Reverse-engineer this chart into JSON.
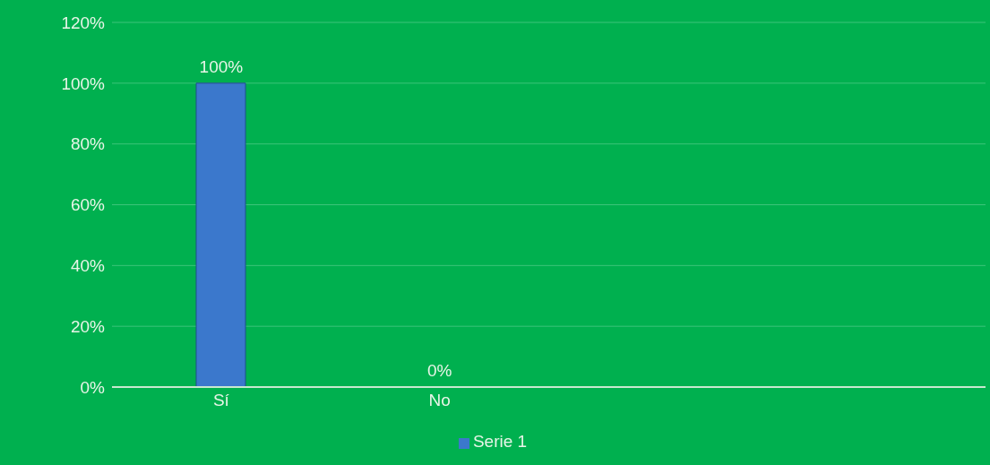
{
  "chart_data": {
    "type": "bar",
    "categories": [
      "Sí",
      "No",
      null,
      null
    ],
    "series": [
      {
        "name": "Serie 1",
        "color": "#3b78cc",
        "values": [
          100,
          0,
          null,
          null
        ],
        "value_labels": [
          "100%",
          "0%",
          null,
          null
        ]
      }
    ],
    "ylim": [
      0,
      120
    ],
    "yticks": [
      {
        "value": 0,
        "label": "0%"
      },
      {
        "value": 20,
        "label": "20%"
      },
      {
        "value": 40,
        "label": "40%"
      },
      {
        "value": 60,
        "label": "60%"
      },
      {
        "value": 80,
        "label": "80%"
      },
      {
        "value": 100,
        "label": "100%"
      },
      {
        "value": 120,
        "label": "120%"
      }
    ],
    "grid": "y",
    "legend": "bottom"
  }
}
